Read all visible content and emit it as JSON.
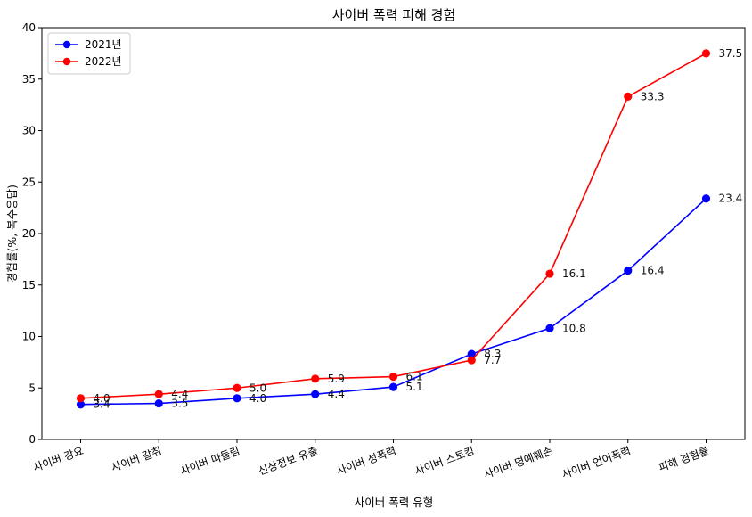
{
  "chart_data": {
    "type": "line",
    "title": "사이버 폭력 피해 경험",
    "xlabel": "사이버 폭력 유형",
    "ylabel": "경험률(%, 복수응답)",
    "categories": [
      "사이버 강요",
      "사이버 갈취",
      "사이버 따돌림",
      "신상정보 유출",
      "사이버 성폭력",
      "사이버 스토킹",
      "사이버 명예훼손",
      "사이버 언어폭력",
      "피해 경험률"
    ],
    "ylim": [
      0,
      40
    ],
    "yticks": [
      0,
      5,
      10,
      15,
      20,
      25,
      30,
      35,
      40
    ],
    "grid": false,
    "legend_position": "top-left",
    "series": [
      {
        "name": "2021년",
        "color": "#0000ff",
        "values": [
          3.4,
          3.5,
          4.0,
          4.4,
          5.1,
          8.3,
          10.8,
          16.4,
          23.4
        ],
        "labels": [
          "3.4",
          "3.5",
          "4.0",
          "4.4",
          "5.1",
          "8.3",
          "10.8",
          "16.4",
          "23.4"
        ]
      },
      {
        "name": "2022년",
        "color": "#ff0000",
        "values": [
          4.0,
          4.4,
          5.0,
          5.9,
          6.1,
          7.7,
          16.1,
          33.3,
          37.5
        ],
        "labels": [
          "4.0",
          "4.4",
          "5.0",
          "5.9",
          "6.1",
          "7.7",
          "16.1",
          "33.3",
          "37.5"
        ]
      }
    ]
  }
}
